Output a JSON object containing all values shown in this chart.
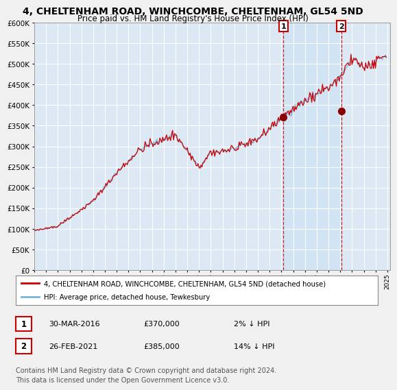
{
  "title": "4, CHELTENHAM ROAD, WINCHCOMBE, CHELTENHAM, GL54 5ND",
  "subtitle": "Price paid vs. HM Land Registry's House Price Index (HPI)",
  "legend_line1": "4, CHELTENHAM ROAD, WINCHCOMBE, CHELTENHAM, GL54 5ND (detached house)",
  "legend_line2": "HPI: Average price, detached house, Tewkesbury",
  "transaction1_label": "1",
  "transaction1_date": "30-MAR-2016",
  "transaction1_price": 370000,
  "transaction1_hpi_diff": "2% ↓ HPI",
  "transaction2_label": "2",
  "transaction2_date": "26-FEB-2021",
  "transaction2_price": 385000,
  "transaction2_hpi_diff": "14% ↓ HPI",
  "ylim": [
    0,
    600000
  ],
  "yticks": [
    0,
    50000,
    100000,
    150000,
    200000,
    250000,
    300000,
    350000,
    400000,
    450000,
    500000,
    550000,
    600000
  ],
  "page_bg": "#f0f0f0",
  "chart_bg": "#dce9f5",
  "line_color_hpi": "#7ab4d8",
  "line_color_property": "#cc0000",
  "grid_color": "#ffffff",
  "marker_color": "#8b0000",
  "dashed_line_color": "#cc0000",
  "footer_text": "Contains HM Land Registry data © Crown copyright and database right 2024.\nThis data is licensed under the Open Government Licence v3.0.",
  "footer_fontsize": 7,
  "title_fontsize": 10,
  "subtitle_fontsize": 8.5
}
